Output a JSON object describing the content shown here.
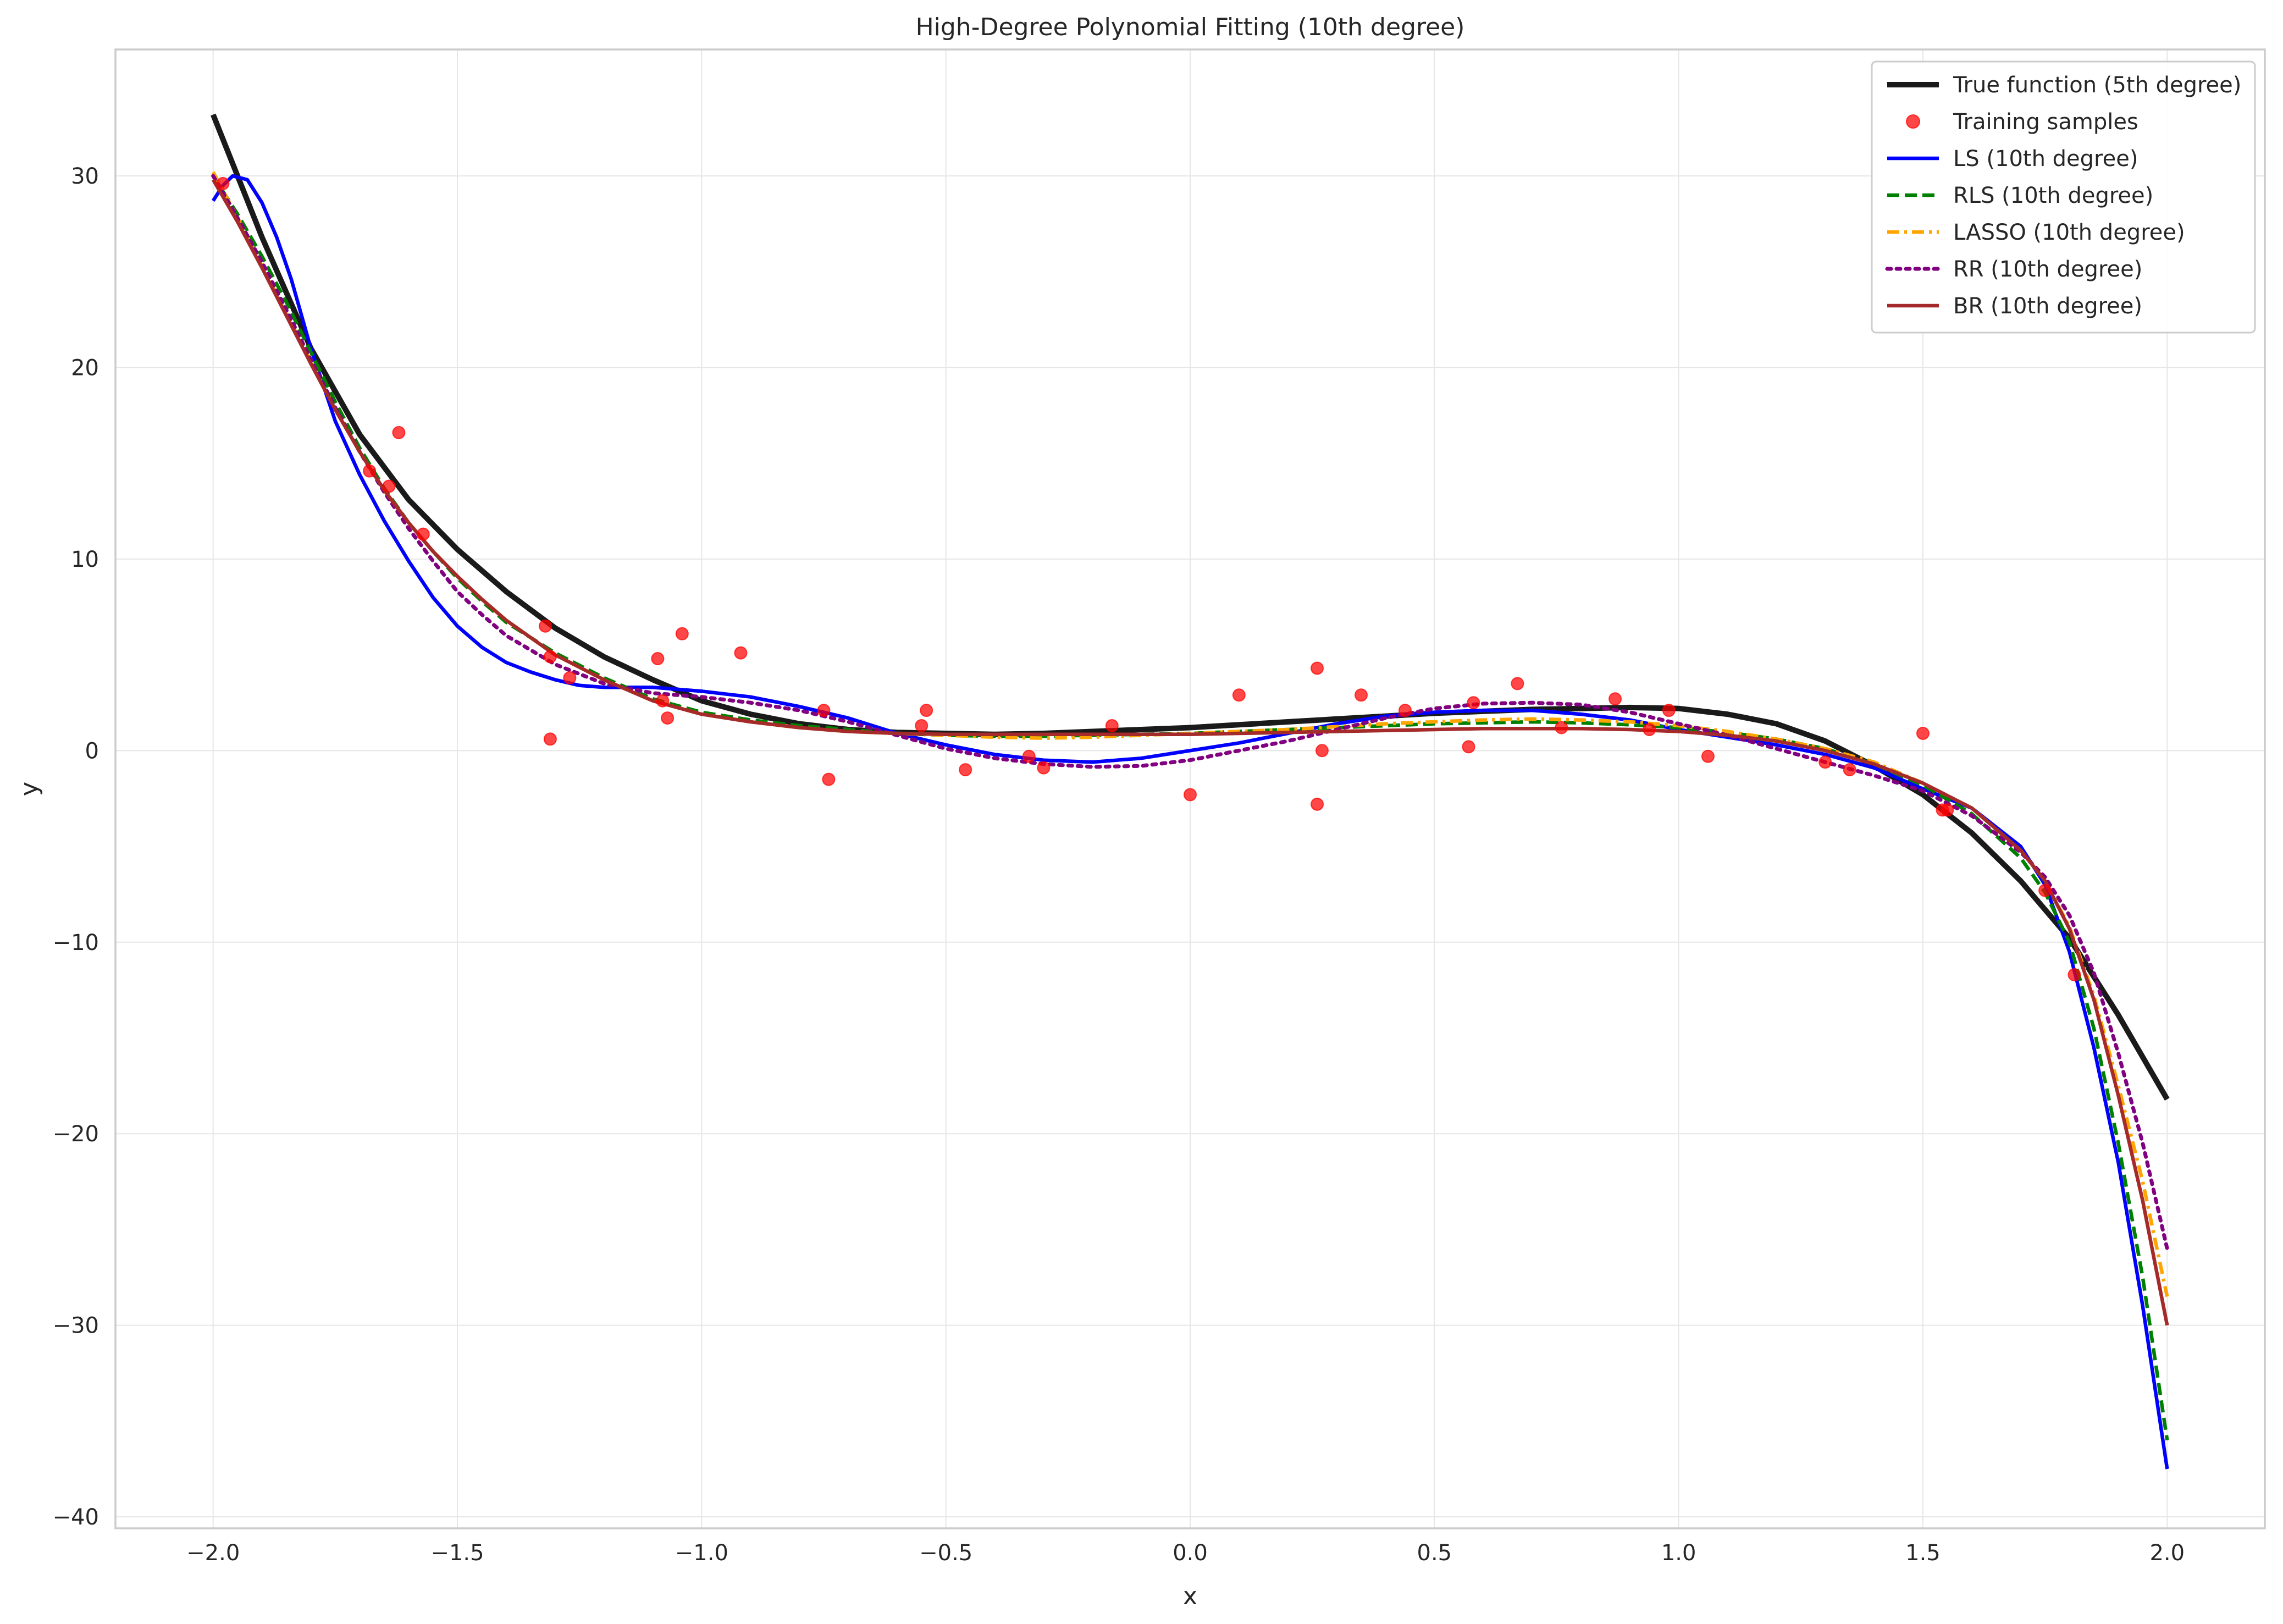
{
  "chart_data": {
    "type": "line",
    "title": "High-Degree Polynomial Fitting (10th degree)",
    "xlabel": "x",
    "ylabel": "y",
    "xlim": [
      -2.2,
      2.2
    ],
    "ylim": [
      -40.6,
      36.6
    ],
    "xticks": [
      -2.0,
      -1.5,
      -1.0,
      -0.5,
      0.0,
      0.5,
      1.0,
      1.5,
      2.0
    ],
    "xtick_labels": [
      "−2.0",
      "−1.5",
      "−1.0",
      "−0.5",
      "0.0",
      "0.5",
      "1.0",
      "1.5",
      "2.0"
    ],
    "yticks": [
      30,
      20,
      10,
      0,
      -10,
      -20,
      -30,
      -40
    ],
    "ytick_labels": [
      "30",
      "20",
      "10",
      "0",
      "−10",
      "−20",
      "−30",
      "−40"
    ],
    "grid": true,
    "legend_position": "top-right",
    "series": [
      {
        "name": "True function (5th degree)",
        "kind": "line",
        "color": "#1a1a1a",
        "style": "solid",
        "width": 10,
        "x": [
          -2.0,
          -1.9,
          -1.8,
          -1.7,
          -1.6,
          -1.5,
          -1.4,
          -1.3,
          -1.2,
          -1.1,
          -1.0,
          -0.9,
          -0.8,
          -0.7,
          -0.6,
          -0.5,
          -0.4,
          -0.3,
          -0.2,
          -0.1,
          0.0,
          0.1,
          0.2,
          0.3,
          0.4,
          0.5,
          0.6,
          0.7,
          0.8,
          0.9,
          1.0,
          1.1,
          1.2,
          1.3,
          1.4,
          1.5,
          1.6,
          1.7,
          1.8,
          1.9,
          2.0
        ],
        "y": [
          33.2,
          26.8,
          21.0,
          16.5,
          13.1,
          10.5,
          8.3,
          6.4,
          4.9,
          3.7,
          2.6,
          1.9,
          1.4,
          1.1,
          0.95,
          0.9,
          0.85,
          0.9,
          1.0,
          1.1,
          1.2,
          1.35,
          1.5,
          1.65,
          1.8,
          1.95,
          2.05,
          2.15,
          2.2,
          2.25,
          2.2,
          1.9,
          1.4,
          0.5,
          -0.8,
          -2.3,
          -4.3,
          -6.8,
          -9.8,
          -13.8,
          -18.2
        ]
      },
      {
        "name": "LS (10th degree)",
        "kind": "line",
        "color": "#0000ff",
        "style": "solid",
        "width": 6.5,
        "x": [
          -2.0,
          -1.98,
          -1.96,
          -1.93,
          -1.9,
          -1.87,
          -1.84,
          -1.8,
          -1.75,
          -1.7,
          -1.65,
          -1.6,
          -1.55,
          -1.5,
          -1.45,
          -1.4,
          -1.35,
          -1.3,
          -1.25,
          -1.2,
          -1.1,
          -1.0,
          -0.9,
          -0.8,
          -0.7,
          -0.6,
          -0.5,
          -0.4,
          -0.3,
          -0.2,
          -0.1,
          0.0,
          0.1,
          0.2,
          0.3,
          0.4,
          0.5,
          0.6,
          0.7,
          0.8,
          0.9,
          1.0,
          1.1,
          1.2,
          1.3,
          1.4,
          1.5,
          1.6,
          1.7,
          1.75,
          1.8,
          1.85,
          1.9,
          1.95,
          2.0
        ],
        "y": [
          28.7,
          29.5,
          30.0,
          29.8,
          28.6,
          26.8,
          24.6,
          21.0,
          17.2,
          14.4,
          12.0,
          9.9,
          8.0,
          6.5,
          5.4,
          4.6,
          4.1,
          3.7,
          3.4,
          3.3,
          3.3,
          3.1,
          2.8,
          2.3,
          1.7,
          0.9,
          0.3,
          -0.2,
          -0.5,
          -0.6,
          -0.4,
          0.0,
          0.4,
          0.9,
          1.4,
          1.8,
          2.0,
          2.1,
          2.1,
          1.9,
          1.6,
          1.1,
          0.7,
          0.3,
          -0.2,
          -0.9,
          -2.0,
          -3.0,
          -5.0,
          -7.0,
          -10.5,
          -15.5,
          -21.5,
          -29.0,
          -37.5
        ]
      },
      {
        "name": "RLS (10th degree)",
        "kind": "line",
        "color": "#008000",
        "style": "dashed",
        "width": 6.5,
        "x": [
          -2.0,
          -1.95,
          -1.9,
          -1.85,
          -1.8,
          -1.75,
          -1.7,
          -1.65,
          -1.6,
          -1.55,
          -1.5,
          -1.45,
          -1.4,
          -1.3,
          -1.2,
          -1.1,
          -1.0,
          -0.9,
          -0.8,
          -0.7,
          -0.6,
          -0.5,
          -0.4,
          -0.3,
          -0.2,
          -0.1,
          0.0,
          0.1,
          0.2,
          0.3,
          0.4,
          0.5,
          0.6,
          0.7,
          0.8,
          0.9,
          1.0,
          1.1,
          1.2,
          1.3,
          1.4,
          1.5,
          1.6,
          1.7,
          1.75,
          1.8,
          1.85,
          1.9,
          1.95,
          2.0
        ],
        "y": [
          30.0,
          28.0,
          25.8,
          23.4,
          20.8,
          18.2,
          15.8,
          13.7,
          11.9,
          10.4,
          9.0,
          7.8,
          6.7,
          5.1,
          3.8,
          2.7,
          2.0,
          1.6,
          1.3,
          1.1,
          0.9,
          0.8,
          0.75,
          0.75,
          0.8,
          0.85,
          0.9,
          1.0,
          1.1,
          1.2,
          1.3,
          1.4,
          1.45,
          1.5,
          1.45,
          1.35,
          1.2,
          0.95,
          0.6,
          0.1,
          -0.7,
          -1.8,
          -3.3,
          -5.6,
          -7.4,
          -10.0,
          -14.5,
          -20.5,
          -27.5,
          -36.0
        ]
      },
      {
        "name": "LASSO (10th degree)",
        "kind": "line",
        "color": "#ffa500",
        "style": "dashdot",
        "width": 6.5,
        "x": [
          -2.0,
          -1.95,
          -1.9,
          -1.85,
          -1.8,
          -1.75,
          -1.7,
          -1.65,
          -1.6,
          -1.55,
          -1.5,
          -1.45,
          -1.4,
          -1.3,
          -1.2,
          -1.1,
          -1.0,
          -0.9,
          -0.8,
          -0.7,
          -0.6,
          -0.5,
          -0.4,
          -0.3,
          -0.2,
          -0.1,
          0.0,
          0.1,
          0.2,
          0.3,
          0.4,
          0.5,
          0.6,
          0.7,
          0.8,
          0.9,
          1.0,
          1.1,
          1.2,
          1.3,
          1.4,
          1.5,
          1.6,
          1.7,
          1.75,
          1.8,
          1.85,
          1.9,
          1.95,
          2.0
        ],
        "y": [
          30.2,
          27.8,
          25.3,
          22.8,
          20.3,
          17.8,
          15.6,
          13.6,
          11.9,
          10.4,
          9.1,
          7.9,
          6.8,
          5.0,
          3.7,
          2.6,
          1.9,
          1.5,
          1.2,
          1.0,
          0.9,
          0.8,
          0.7,
          0.65,
          0.7,
          0.8,
          0.9,
          1.0,
          1.1,
          1.25,
          1.4,
          1.5,
          1.6,
          1.65,
          1.6,
          1.5,
          1.3,
          1.0,
          0.6,
          0.1,
          -0.6,
          -1.7,
          -3.0,
          -5.2,
          -6.8,
          -9.2,
          -12.8,
          -17.5,
          -22.5,
          -28.5
        ]
      },
      {
        "name": "RR (10th degree)",
        "kind": "line",
        "color": "#800080",
        "style": "dotted",
        "width": 7,
        "x": [
          -2.0,
          -1.95,
          -1.9,
          -1.85,
          -1.8,
          -1.75,
          -1.7,
          -1.65,
          -1.6,
          -1.55,
          -1.5,
          -1.45,
          -1.4,
          -1.3,
          -1.2,
          -1.1,
          -1.0,
          -0.9,
          -0.8,
          -0.7,
          -0.6,
          -0.5,
          -0.4,
          -0.3,
          -0.2,
          -0.1,
          0.0,
          0.1,
          0.2,
          0.3,
          0.4,
          0.5,
          0.6,
          0.7,
          0.8,
          0.9,
          1.0,
          1.1,
          1.2,
          1.3,
          1.4,
          1.5,
          1.6,
          1.7,
          1.75,
          1.8,
          1.85,
          1.9,
          1.95,
          2.0
        ],
        "y": [
          30.0,
          27.8,
          25.5,
          23.0,
          20.4,
          17.9,
          15.6,
          13.5,
          11.6,
          9.9,
          8.3,
          7.1,
          6.0,
          4.5,
          3.5,
          3.0,
          2.8,
          2.5,
          2.1,
          1.5,
          0.8,
          0.1,
          -0.4,
          -0.7,
          -0.85,
          -0.8,
          -0.5,
          0.0,
          0.5,
          1.1,
          1.7,
          2.2,
          2.45,
          2.5,
          2.4,
          2.0,
          1.4,
          0.8,
          0.1,
          -0.6,
          -1.3,
          -2.1,
          -3.4,
          -5.3,
          -6.6,
          -8.6,
          -11.6,
          -15.8,
          -20.5,
          -26.0
        ]
      },
      {
        "name": "BR (10th degree)",
        "kind": "line",
        "color": "#a52a2a",
        "style": "solid",
        "width": 6.5,
        "x": [
          -2.0,
          -1.95,
          -1.9,
          -1.85,
          -1.8,
          -1.75,
          -1.7,
          -1.65,
          -1.6,
          -1.55,
          -1.5,
          -1.45,
          -1.4,
          -1.3,
          -1.2,
          -1.1,
          -1.0,
          -0.9,
          -0.8,
          -0.7,
          -0.6,
          -0.5,
          -0.4,
          -0.3,
          -0.2,
          -0.1,
          0.0,
          0.1,
          0.2,
          0.3,
          0.4,
          0.5,
          0.6,
          0.7,
          0.8,
          0.9,
          1.0,
          1.1,
          1.2,
          1.3,
          1.4,
          1.5,
          1.6,
          1.7,
          1.75,
          1.8,
          1.85,
          1.9,
          1.95,
          2.0
        ],
        "y": [
          29.8,
          27.6,
          25.2,
          22.7,
          20.2,
          17.8,
          15.6,
          13.6,
          11.9,
          10.4,
          9.1,
          7.9,
          6.8,
          5.0,
          3.7,
          2.6,
          1.9,
          1.5,
          1.2,
          1.0,
          0.9,
          0.85,
          0.85,
          0.85,
          0.85,
          0.85,
          0.85,
          0.9,
          0.95,
          1.0,
          1.05,
          1.1,
          1.15,
          1.15,
          1.15,
          1.1,
          1.0,
          0.8,
          0.5,
          0.0,
          -0.7,
          -1.7,
          -3.0,
          -5.2,
          -6.8,
          -9.3,
          -13.0,
          -18.0,
          -23.5,
          -30.0
        ]
      },
      {
        "name": "Training samples",
        "kind": "scatter",
        "color": "#ff0000",
        "x": [
          -1.98,
          -1.68,
          -1.64,
          -1.62,
          -1.57,
          -1.32,
          -1.31,
          -1.31,
          -1.27,
          -1.09,
          -1.08,
          -1.07,
          -1.04,
          -0.92,
          -0.75,
          -0.74,
          -0.55,
          -0.54,
          -0.46,
          -0.33,
          -0.3,
          -0.16,
          0.0,
          0.1,
          0.26,
          0.26,
          0.27,
          0.35,
          0.44,
          0.57,
          0.58,
          0.67,
          0.76,
          0.87,
          0.94,
          0.98,
          1.06,
          1.3,
          1.35,
          1.5,
          1.54,
          1.55,
          1.75,
          1.81
        ],
        "y": [
          29.6,
          14.6,
          13.8,
          16.6,
          11.3,
          6.5,
          4.9,
          0.6,
          3.8,
          4.8,
          2.6,
          1.7,
          6.1,
          5.1,
          2.1,
          -1.5,
          1.3,
          2.1,
          -1.0,
          -0.3,
          -0.9,
          1.3,
          -2.3,
          2.9,
          4.3,
          -2.8,
          0.0,
          2.9,
          2.1,
          0.2,
          2.5,
          3.5,
          1.2,
          2.7,
          1.1,
          2.1,
          -0.3,
          -0.6,
          -1.0,
          0.9,
          -3.1,
          -3.1,
          -7.3,
          -11.7
        ]
      }
    ],
    "legend_order": [
      0,
      6,
      1,
      2,
      3,
      4,
      5
    ]
  }
}
